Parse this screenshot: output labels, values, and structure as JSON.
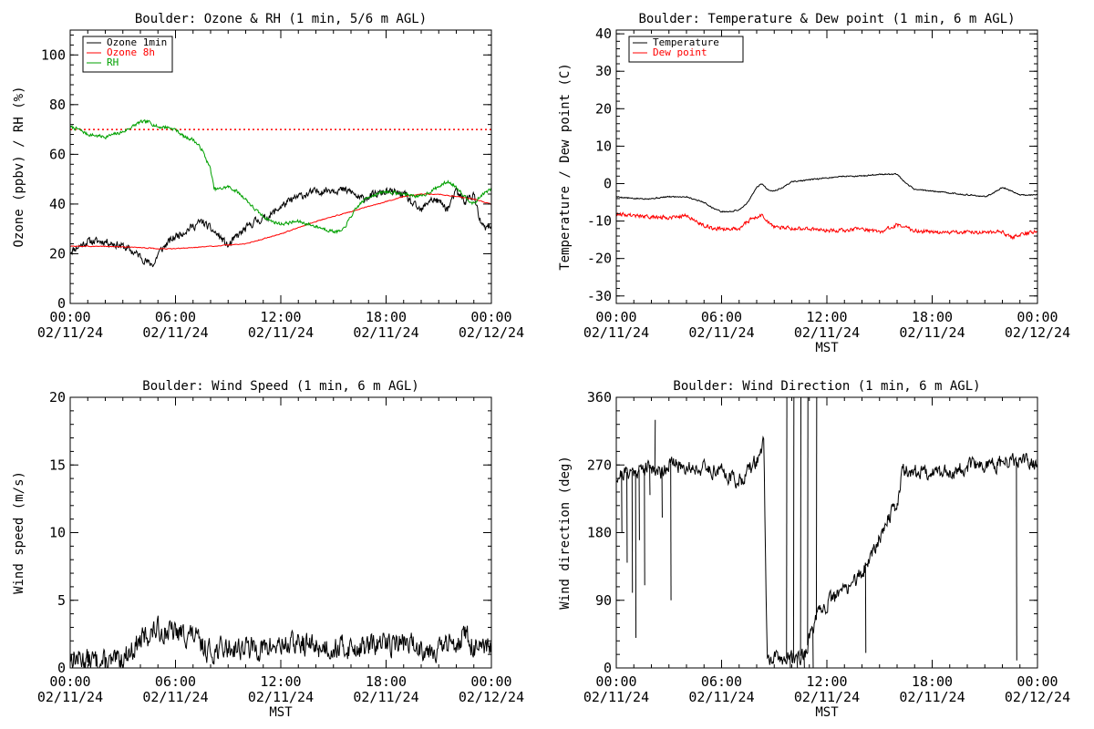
{
  "colors": {
    "background": "#ffffff",
    "axes": "#000000",
    "ozone_1min": "#000000",
    "ozone_8h": "#ff0000",
    "rh": "#00a000",
    "temperature": "#000000",
    "dew_point": "#ff0000",
    "wind": "#000000"
  },
  "chart_data": [
    {
      "id": "ozone",
      "type": "line",
      "title": "Boulder: Ozone & RH (1 min, 5/6 m AGL)",
      "xlabel": "",
      "ylabel": "Ozone (ppbv) / RH (%)",
      "x_ticks": [
        {
          "top": "00:00",
          "bottom": "02/11/24"
        },
        {
          "top": "06:00",
          "bottom": "02/11/24"
        },
        {
          "top": "12:00",
          "bottom": "02/11/24"
        },
        {
          "top": "18:00",
          "bottom": "02/11/24"
        },
        {
          "top": "00:00",
          "bottom": "02/12/24"
        }
      ],
      "xlim": [
        0,
        24
      ],
      "ylim": [
        0,
        110
      ],
      "y_ticks": [
        0,
        20,
        40,
        60,
        80,
        100
      ],
      "legend": "top-left",
      "grid": false,
      "reference_lines": [
        {
          "y": 70,
          "style": "dotted",
          "color": "#ff0000"
        }
      ],
      "series": [
        {
          "name": "Ozone 1min",
          "color": "#000000",
          "noise": 1.4,
          "seed": 11,
          "x": [
            0,
            0.5,
            1,
            2,
            3,
            3.5,
            4,
            4.5,
            4.8,
            5,
            5.5,
            6,
            6.5,
            7,
            7.5,
            8,
            8.5,
            9,
            9.5,
            10,
            10.5,
            11,
            11.5,
            12,
            13,
            14,
            15,
            16,
            16.5,
            17,
            18,
            19,
            19.5,
            20,
            20.5,
            21,
            21.5,
            22,
            22.5,
            23,
            23.3,
            23.6,
            24
          ],
          "y": [
            21,
            23,
            25,
            25,
            23,
            21,
            19,
            16,
            16,
            20,
            24,
            27,
            29,
            31,
            33,
            30,
            27,
            23,
            27,
            30,
            33,
            34,
            36,
            39,
            43,
            45,
            46,
            45,
            42,
            43,
            45,
            44,
            40,
            37,
            42,
            41,
            38,
            45,
            41,
            44,
            34,
            30,
            31
          ]
        },
        {
          "name": "Ozone 8h",
          "color": "#ff0000",
          "noise": 0.15,
          "seed": 3,
          "x": [
            0,
            2,
            4,
            5,
            6,
            8,
            10,
            11,
            12,
            14,
            16,
            18,
            19,
            20,
            21,
            22,
            23,
            24
          ],
          "y": [
            23,
            23,
            22.5,
            22,
            22,
            23,
            24,
            26,
            28,
            33,
            37,
            41,
            43,
            44,
            44,
            43,
            42,
            40
          ]
        },
        {
          "name": "RH",
          "color": "#00a000",
          "noise": 0.6,
          "seed": 7,
          "x": [
            0,
            0.5,
            1,
            2,
            2.5,
            3,
            3.5,
            4,
            4.5,
            5,
            5.5,
            6,
            6.5,
            7,
            7.5,
            8,
            8.2,
            8.5,
            9,
            9.5,
            10,
            10.5,
            11,
            11.5,
            12,
            13,
            14,
            15,
            15.5,
            16,
            16.5,
            17,
            18,
            19,
            20,
            20.5,
            21,
            21.5,
            22,
            22.5,
            23,
            23.5,
            24
          ],
          "y": [
            71,
            70,
            68,
            67,
            68,
            69,
            71,
            73,
            73,
            71,
            71,
            70,
            67,
            66,
            62,
            54,
            46,
            46,
            47,
            45,
            42,
            38,
            35,
            33,
            32,
            33,
            31,
            29,
            29,
            35,
            40,
            43,
            45,
            44,
            43,
            45,
            47,
            49,
            47,
            43,
            40,
            44,
            46
          ]
        }
      ]
    },
    {
      "id": "temperature",
      "type": "line",
      "title": "Boulder: Temperature & Dew point (1 min, 6 m AGL)",
      "xlabel": "MST",
      "ylabel": "Temperature / Dew point (C)",
      "x_ticks": [
        {
          "top": "00:00",
          "bottom": "02/11/24"
        },
        {
          "top": "06:00",
          "bottom": "02/11/24"
        },
        {
          "top": "12:00",
          "bottom": "02/11/24"
        },
        {
          "top": "18:00",
          "bottom": "02/11/24"
        },
        {
          "top": "00:00",
          "bottom": "02/12/24"
        }
      ],
      "xlim": [
        0,
        24
      ],
      "ylim": [
        -32,
        41
      ],
      "y_ticks": [
        -30,
        -20,
        -10,
        0,
        10,
        20,
        30,
        40
      ],
      "legend": "top-left",
      "grid": false,
      "series": [
        {
          "name": "Temperature",
          "color": "#000000",
          "noise": 0.15,
          "seed": 5,
          "x": [
            0,
            1,
            2,
            3,
            4,
            5,
            5.5,
            6,
            6.5,
            7,
            7.5,
            8,
            8.3,
            8.6,
            9,
            9.5,
            10,
            11,
            12,
            13,
            14,
            15,
            16,
            16.5,
            17,
            18,
            19,
            20,
            21,
            21.5,
            22,
            22.3,
            23,
            24
          ],
          "y": [
            -3.5,
            -4,
            -4,
            -3.5,
            -3.5,
            -5,
            -6.5,
            -7.5,
            -7.5,
            -7,
            -5,
            -1,
            0,
            -1.5,
            -2,
            -1,
            0.5,
            1,
            1.5,
            2,
            2,
            2.5,
            2.5,
            0,
            -1.5,
            -2,
            -2.5,
            -3,
            -3.5,
            -2.5,
            -1,
            -1.5,
            -3,
            -3
          ]
        },
        {
          "name": "Dew point",
          "color": "#ff0000",
          "noise": 0.45,
          "seed": 9,
          "x": [
            0,
            1,
            2,
            3,
            4,
            4.5,
            5,
            5.5,
            6,
            6.5,
            7,
            7.5,
            8,
            8.3,
            8.6,
            9,
            10,
            11,
            12,
            13,
            14,
            15,
            16,
            17,
            18,
            19,
            20,
            21,
            22,
            22.5,
            23,
            24
          ],
          "y": [
            -8,
            -8.5,
            -9,
            -9,
            -8.5,
            -10,
            -11,
            -12,
            -12,
            -12,
            -12,
            -10,
            -9,
            -8.5,
            -10,
            -11.5,
            -12,
            -12,
            -12.5,
            -12.5,
            -12,
            -13,
            -11,
            -12.5,
            -13,
            -13,
            -13,
            -13,
            -13,
            -14.5,
            -13.5,
            -13
          ]
        }
      ]
    },
    {
      "id": "wind_speed",
      "type": "line",
      "title": "Boulder: Wind Speed (1 min, 6 m AGL)",
      "xlabel": "MST",
      "ylabel": "Wind speed (m/s)",
      "x_ticks": [
        {
          "top": "00:00",
          "bottom": "02/11/24"
        },
        {
          "top": "06:00",
          "bottom": "02/11/24"
        },
        {
          "top": "12:00",
          "bottom": "02/11/24"
        },
        {
          "top": "18:00",
          "bottom": "02/11/24"
        },
        {
          "top": "00:00",
          "bottom": "02/12/24"
        }
      ],
      "xlim": [
        0,
        24
      ],
      "ylim": [
        0,
        20
      ],
      "y_ticks": [
        0,
        5,
        10,
        15,
        20
      ],
      "legend": "none",
      "grid": false,
      "series": [
        {
          "color": "#000000",
          "noise": 0.75,
          "seed": 13,
          "clip_min": 0,
          "x": [
            0,
            1,
            2,
            2.5,
            3,
            3.5,
            4,
            4.5,
            5,
            6,
            7,
            7.5,
            8,
            9,
            10,
            11,
            12,
            13,
            14,
            15,
            16,
            17,
            18,
            19,
            20,
            21,
            22,
            22.5,
            23,
            23.5,
            24
          ],
          "y": [
            0.8,
            0.6,
            0.4,
            0.3,
            0.8,
            1.3,
            2,
            2.5,
            2.8,
            2.6,
            2.4,
            1.6,
            1.2,
            1.5,
            1.5,
            1.4,
            1.7,
            1.8,
            1.6,
            1.5,
            1.5,
            1.6,
            1.8,
            1.9,
            1.5,
            1.4,
            2.0,
            2.5,
            1.5,
            1.2,
            1.5
          ]
        }
      ]
    },
    {
      "id": "wind_direction",
      "type": "line",
      "title": "Boulder: Wind Direction (1 min, 6 m AGL)",
      "xlabel": "MST",
      "ylabel": "Wind direction (deg)",
      "x_ticks": [
        {
          "top": "00:00",
          "bottom": "02/11/24"
        },
        {
          "top": "06:00",
          "bottom": "02/11/24"
        },
        {
          "top": "12:00",
          "bottom": "02/11/24"
        },
        {
          "top": "18:00",
          "bottom": "02/11/24"
        },
        {
          "top": "00:00",
          "bottom": "02/12/24"
        }
      ],
      "xlim": [
        0,
        24
      ],
      "ylim": [
        0,
        360
      ],
      "y_ticks": [
        0,
        90,
        180,
        270,
        360
      ],
      "legend": "none",
      "grid": false,
      "series": [
        {
          "color": "#000000",
          "noise": 9,
          "seed": 21,
          "clip_min": 0,
          "clip_max": 360,
          "x": [
            0,
            0.5,
            1,
            1.5,
            2,
            2.5,
            3,
            4,
            5,
            6,
            6.5,
            7,
            7.5,
            8,
            8.4,
            8.6,
            9,
            9.5,
            10,
            10.5,
            10.8,
            11,
            11.5,
            12,
            12.5,
            13,
            13.5,
            14,
            14.5,
            15,
            15.5,
            16,
            16.3,
            17,
            18,
            19,
            20,
            21,
            22,
            23,
            24
          ],
          "y": [
            255,
            260,
            262,
            265,
            268,
            260,
            272,
            268,
            265,
            262,
            255,
            248,
            262,
            275,
            300,
            10,
            12,
            12,
            14,
            16,
            20,
            40,
            70,
            85,
            95,
            105,
            115,
            125,
            150,
            175,
            200,
            215,
            265,
            260,
            262,
            260,
            268,
            270,
            272,
            275,
            270
          ]
        },
        {
          "color": "#000000",
          "noise": 0,
          "seed": 1,
          "style": "spikes",
          "x": [
            0.3,
            0.6,
            0.9,
            1.1,
            1.3,
            1.6,
            1.9,
            2.2,
            2.6,
            3.1,
            9.7,
            9.9,
            10.1,
            10.3,
            10.5,
            10.7,
            10.9,
            11.2,
            11.4,
            14.2,
            22.8
          ],
          "y": [
            180,
            140,
            100,
            40,
            170,
            110,
            230,
            330,
            200,
            90,
            360,
            0,
            360,
            0,
            360,
            0,
            360,
            0,
            360,
            20,
            10
          ]
        }
      ]
    }
  ]
}
